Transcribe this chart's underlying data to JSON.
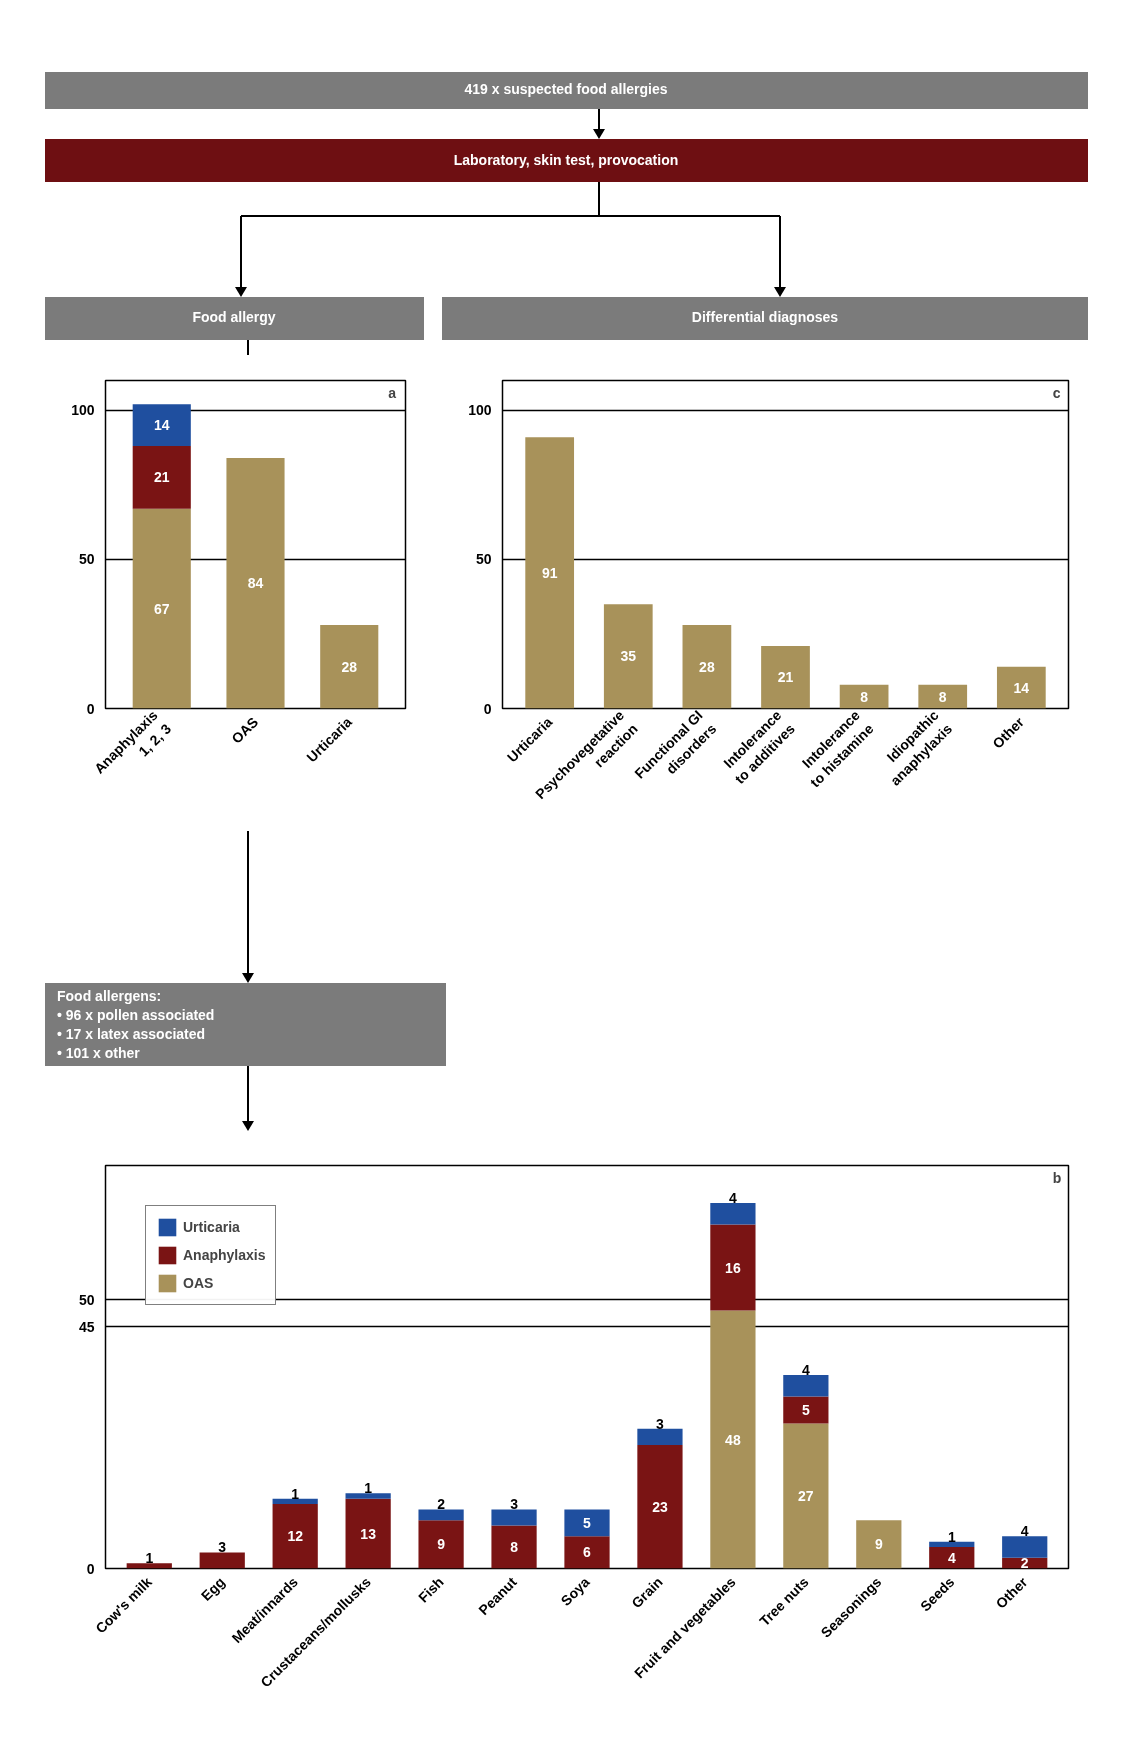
{
  "chart_data": [
    {
      "type": "other",
      "annotations": [
        "419 x suspected food allergies",
        "Laboratory, skin test, provocation",
        "Food allergy",
        "Differential diagnoses",
        "Food allergens:",
        "• 96 x pollen associated",
        "• 17 x latex associated",
        "• 101 x other"
      ]
    },
    {
      "type": "bar",
      "stacked": true,
      "categories": [
        "Anaphylaxis\n1, 2, 3",
        "OAS",
        "Urticaria"
      ],
      "series": [
        {
          "color": "#a8925a",
          "values": [
            67,
            84,
            28
          ]
        },
        {
          "color": "#7a1414",
          "values": [
            21,
            null,
            null
          ]
        },
        {
          "color": "#1f4f9f",
          "values": [
            14,
            null,
            null
          ]
        }
      ],
      "ylim": [
        0,
        110
      ],
      "yticks": [
        0,
        50,
        100
      ],
      "grid": "y",
      "data_labels": true,
      "annotations": [
        "a"
      ]
    },
    {
      "type": "bar",
      "categories": [
        "Urticaria",
        "Psychovegetative\nreaction",
        "Functional GI\ndisorders",
        "Intolerance\nto additives",
        "Intolerance\nto histamine",
        "Idiopathic\nanaphylaxis",
        "Other"
      ],
      "values": [
        91,
        35,
        28,
        21,
        8,
        8,
        14
      ],
      "color": "#a8925a",
      "ylim": [
        0,
        110
      ],
      "yticks": [
        0,
        50,
        100
      ],
      "grid": "y",
      "data_labels": true,
      "annotations": [
        "c"
      ]
    },
    {
      "type": "bar",
      "stacked": true,
      "categories": [
        "Cow's milk",
        "Egg",
        "Meat/innards",
        "Crustaceans/mollusks",
        "Fish",
        "Peanut",
        "Soya",
        "Grain",
        "Fruit and vegetables",
        "Tree nuts",
        "Seasonings",
        "Seeds",
        "Other"
      ],
      "series": [
        {
          "name": "OAS",
          "color": "#a8925a",
          "values": [
            null,
            null,
            null,
            null,
            null,
            null,
            null,
            null,
            48,
            27,
            9,
            null,
            null
          ]
        },
        {
          "name": "Anaphylaxis",
          "color": "#7a1414",
          "values": [
            1,
            3,
            12,
            13,
            9,
            8,
            6,
            23,
            16,
            5,
            null,
            4,
            2
          ]
        },
        {
          "name": "Urticaria",
          "color": "#1f4f9f",
          "values": [
            null,
            null,
            1,
            1,
            2,
            3,
            5,
            3,
            4,
            4,
            null,
            1,
            4
          ]
        }
      ],
      "ylim": [
        0,
        75
      ],
      "yticks": [
        0,
        45,
        50
      ],
      "grid": "y",
      "data_labels": true,
      "legend": "top left",
      "annotations": [
        "b"
      ]
    }
  ]
}
